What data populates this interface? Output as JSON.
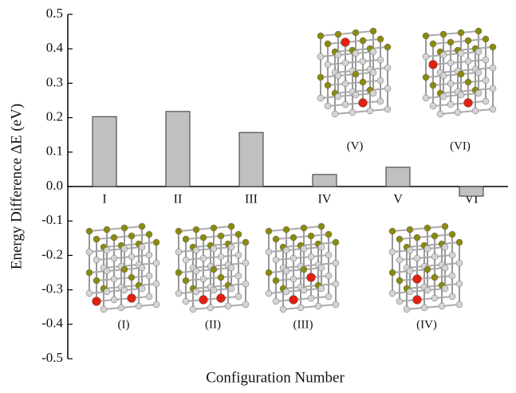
{
  "chart_data": {
    "type": "bar",
    "y_label": "Energy Difference ΔE (eV)",
    "x_label": "Configuration Number",
    "categories": [
      "I",
      "II",
      "III",
      "IV",
      "V",
      "VI"
    ],
    "values": [
      0.203,
      0.218,
      0.157,
      0.035,
      0.056,
      -0.028
    ],
    "color": "#c0c0c0",
    "ylim": [
      -0.5,
      0.5
    ],
    "yticks": [
      -0.5,
      -0.4,
      -0.3,
      -0.2,
      -0.1,
      {
        "value": 0,
        "label": "0.0"
      },
      0.1,
      0.2,
      0.3,
      0.4,
      0.5
    ],
    "insets": [
      "(I)",
      "(II)",
      "(III)",
      "(IV)",
      "(V)",
      "(VI)"
    ]
  }
}
